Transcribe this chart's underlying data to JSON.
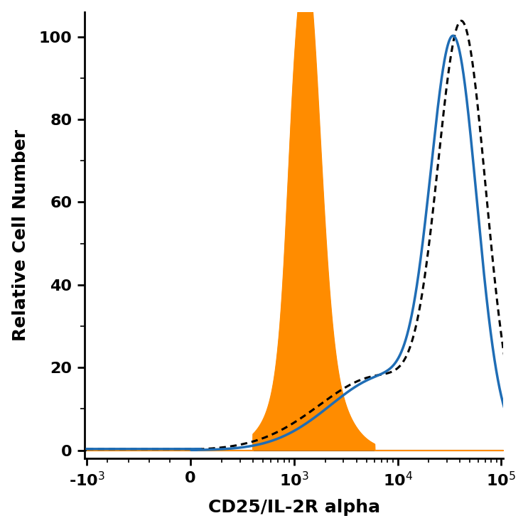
{
  "title": "",
  "xlabel": "CD25/IL-2R alpha",
  "ylabel": "Relative Cell Number",
  "ylim": [
    -2,
    106
  ],
  "yticks": [
    0,
    20,
    40,
    60,
    80,
    100
  ],
  "background_color": "#ffffff",
  "orange_color": "#FF8C00",
  "blue_color": "#1F6DB5",
  "dashed_color": "#000000",
  "tick_values": [
    -1000,
    0,
    1000,
    10000,
    100000
  ],
  "tick_labels": [
    "-10$^3$",
    "0",
    "10$^3$",
    "10$^4$",
    "10$^5$"
  ]
}
